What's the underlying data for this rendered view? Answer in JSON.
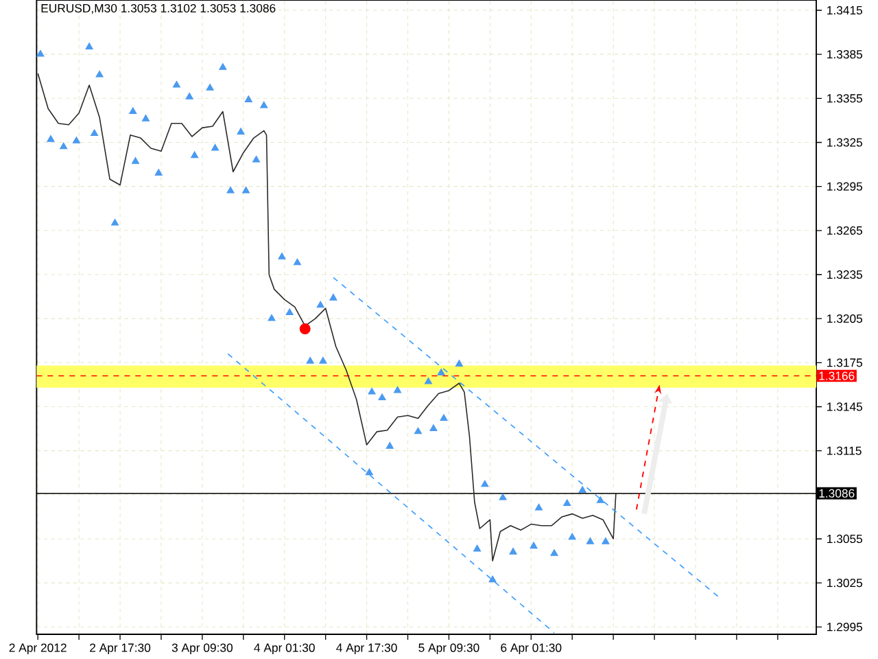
{
  "chart_data": {
    "type": "line",
    "title": "EURUSD,M30  1.3053 1.3102 1.3053 1.3086",
    "xlim": [
      "2012-04-02T01:15",
      "2012-04-08T09:00"
    ],
    "ylim": [
      1.299,
      1.3422
    ],
    "xticks": [
      {
        "value": "2012-04-02T01:30",
        "label": "2 Apr 2012"
      },
      {
        "value": "2012-04-02T09:30",
        "label": null
      },
      {
        "value": "2012-04-02T17:30",
        "label": "2 Apr 17:30"
      },
      {
        "value": "2012-04-03T01:30",
        "label": null
      },
      {
        "value": "2012-04-03T09:30",
        "label": "3 Apr 09:30"
      },
      {
        "value": "2012-04-03T17:30",
        "label": null
      },
      {
        "value": "2012-04-04T01:30",
        "label": "4 Apr 01:30"
      },
      {
        "value": "2012-04-04T09:30",
        "label": null
      },
      {
        "value": "2012-04-04T17:30",
        "label": "4 Apr 17:30"
      },
      {
        "value": "2012-04-05T01:30",
        "label": null
      },
      {
        "value": "2012-04-05T09:30",
        "label": "5 Apr 09:30"
      },
      {
        "value": "2012-04-05T17:30",
        "label": null
      },
      {
        "value": "2012-04-06T01:30",
        "label": "6 Apr 01:30"
      },
      {
        "value": "2012-04-06T09:30",
        "label": null
      },
      {
        "value": "2012-04-06T17:30",
        "label": null
      },
      {
        "value": "2012-04-07T01:30",
        "label": null
      },
      {
        "value": "2012-04-07T09:30",
        "label": null
      },
      {
        "value": "2012-04-07T17:30",
        "label": null
      },
      {
        "value": "2012-04-08T01:30",
        "label": null
      }
    ],
    "yticks": [
      1.2995,
      1.3025,
      1.3055,
      {
        "value": 1.3085,
        "label": null
      },
      1.3115,
      1.3145,
      1.3175,
      1.3205,
      1.3235,
      1.3265,
      1.3295,
      1.3325,
      1.3355,
      1.3385,
      1.3415
    ],
    "grid": true,
    "series": [
      {
        "color": "#2a2a2a",
        "line_style": "solid",
        "x": [
          "2012-04-02T01:30",
          "2012-04-02T03:30",
          "2012-04-02T05:30",
          "2012-04-02T07:30",
          "2012-04-02T09:30",
          "2012-04-02T11:30",
          "2012-04-02T13:30",
          "2012-04-02T15:30",
          "2012-04-02T17:30",
          "2012-04-02T19:30",
          "2012-04-02T21:30",
          "2012-04-02T23:30",
          "2012-04-03T01:30",
          "2012-04-03T03:30",
          "2012-04-03T05:30",
          "2012-04-03T07:30",
          "2012-04-03T09:30",
          "2012-04-03T11:30",
          "2012-04-03T13:30",
          "2012-04-03T15:30",
          "2012-04-03T17:30",
          "2012-04-03T19:30",
          "2012-04-03T21:30",
          "2012-04-03T22:00",
          "2012-04-03T22:30",
          "2012-04-03T23:30",
          "2012-04-04T01:30",
          "2012-04-04T03:30",
          "2012-04-04T05:30",
          "2012-04-04T07:30",
          "2012-04-04T09:30",
          "2012-04-04T11:30",
          "2012-04-04T13:30",
          "2012-04-04T15:30",
          "2012-04-04T17:30",
          "2012-04-04T19:30",
          "2012-04-04T21:30",
          "2012-04-04T23:30",
          "2012-04-05T01:30",
          "2012-04-05T03:30",
          "2012-04-05T05:30",
          "2012-04-05T07:30",
          "2012-04-05T09:30",
          "2012-04-05T11:30",
          "2012-04-05T12:30",
          "2012-04-05T13:30",
          "2012-04-05T14:30",
          "2012-04-05T15:30",
          "2012-04-05T17:30",
          "2012-04-05T18:00",
          "2012-04-05T19:30",
          "2012-04-05T21:30",
          "2012-04-05T23:30",
          "2012-04-06T01:30",
          "2012-04-06T03:30",
          "2012-04-06T05:30",
          "2012-04-06T07:30",
          "2012-04-06T09:30",
          "2012-04-06T11:30",
          "2012-04-06T13:30",
          "2012-04-06T15:30",
          "2012-04-06T17:30",
          "2012-04-06T18:00"
        ],
        "values": [
          1.3372,
          1.3348,
          1.3338,
          1.3337,
          1.3345,
          1.3364,
          1.3342,
          1.33,
          1.3296,
          1.333,
          1.3328,
          1.3321,
          1.3319,
          1.3338,
          1.3338,
          1.3329,
          1.3335,
          1.3336,
          1.3346,
          1.3305,
          1.3318,
          1.3328,
          1.3333,
          1.333,
          1.3235,
          1.3225,
          1.3218,
          1.3213,
          1.32,
          1.3205,
          1.3212,
          1.3186,
          1.317,
          1.315,
          1.3119,
          1.3128,
          1.3129,
          1.3138,
          1.3139,
          1.3137,
          1.3146,
          1.3154,
          1.3156,
          1.3161,
          1.3155,
          1.3125,
          1.308,
          1.3062,
          1.3068,
          1.304,
          1.306,
          1.3064,
          1.3061,
          1.3065,
          1.3064,
          1.3064,
          1.307,
          1.3072,
          1.3069,
          1.3071,
          1.3068,
          1.3055,
          1.3086
        ]
      },
      {
        "type": "line",
        "color": "#3399ff",
        "line_style": "dashed",
        "x": [
          "2012-04-04T11:00",
          "2012-04-07T14:30"
        ],
        "values": [
          1.3233,
          1.3014
        ]
      },
      {
        "type": "line",
        "color": "#3399ff",
        "line_style": "dashed",
        "x": [
          "2012-04-03T14:30",
          "2012-04-06T06:00"
        ],
        "values": [
          1.3181,
          1.2991
        ]
      },
      {
        "type": "scatter",
        "color": "#4a9af0",
        "marker": "triangle",
        "x": [
          "2012-04-02T02:00",
          "2012-04-02T11:30",
          "2012-04-02T13:30",
          "2012-04-02T20:00",
          "2012-04-02T22:30",
          "2012-04-03T04:30",
          "2012-04-03T07:00",
          "2012-04-03T11:00",
          "2012-04-03T13:30",
          "2012-04-03T17:00",
          "2012-04-03T18:30",
          "2012-04-03T21:30",
          "2012-04-04T01:00",
          "2012-04-04T04:00",
          "2012-04-04T08:30",
          "2012-04-04T11:00",
          "2012-04-04T18:30",
          "2012-04-04T20:30",
          "2012-04-04T23:30",
          "2012-04-05T05:30",
          "2012-04-05T08:00",
          "2012-04-05T11:30",
          "2012-04-05T16:30",
          "2012-04-05T20:00",
          "2012-04-06T03:00",
          "2012-04-06T08:30",
          "2012-04-06T11:30",
          "2012-04-06T15:00"
        ],
        "values": [
          1.3385,
          1.339,
          1.3371,
          1.3346,
          1.3341,
          1.3364,
          1.3356,
          1.3362,
          1.3376,
          1.3332,
          1.3354,
          1.335,
          1.3247,
          1.3243,
          1.3214,
          1.3219,
          1.3155,
          1.3151,
          1.3156,
          1.3162,
          1.3168,
          1.3174,
          1.3092,
          1.3083,
          1.3076,
          1.3079,
          1.3088,
          1.3081
        ]
      },
      {
        "type": "scatter",
        "color": "#4a9af0",
        "marker": "triangle",
        "x": [
          "2012-04-02T04:00",
          "2012-04-02T06:30",
          "2012-04-02T09:00",
          "2012-04-02T12:30",
          "2012-04-02T16:30",
          "2012-04-02T20:30",
          "2012-04-03T01:00",
          "2012-04-03T08:00",
          "2012-04-03T12:00",
          "2012-04-03T15:00",
          "2012-04-03T18:00",
          "2012-04-03T20:00",
          "2012-04-03T23:00",
          "2012-04-04T02:30",
          "2012-04-04T06:30",
          "2012-04-04T09:00",
          "2012-04-04T18:00",
          "2012-04-04T22:00",
          "2012-04-05T03:30",
          "2012-04-05T06:30",
          "2012-04-05T08:30",
          "2012-04-05T15:00",
          "2012-04-05T18:00",
          "2012-04-05T22:00",
          "2012-04-06T02:00",
          "2012-04-06T06:00",
          "2012-04-06T09:30",
          "2012-04-06T13:00",
          "2012-04-06T16:00"
        ],
        "values": [
          1.3327,
          1.3322,
          1.3326,
          1.3331,
          1.327,
          1.3312,
          1.3304,
          1.3316,
          1.3321,
          1.3292,
          1.3292,
          1.3313,
          1.3205,
          1.3209,
          1.3176,
          1.3176,
          1.31,
          1.3118,
          1.3128,
          1.313,
          1.3137,
          1.3048,
          1.3027,
          1.3046,
          1.305,
          1.3045,
          1.3056,
          1.3053,
          1.3053
        ]
      },
      {
        "type": "scatter",
        "color": "#ff0000",
        "marker": "circle",
        "x": [
          "2012-04-04T05:30"
        ],
        "values": [
          1.3198
        ]
      }
    ],
    "ref_lines": [
      {
        "axis": "y",
        "value": 1.3166,
        "label": "1.3166",
        "color": "#ff0000",
        "line_style": "dashed"
      },
      {
        "axis": "y",
        "value": 1.3086,
        "label": "1.3086",
        "color": "#000000",
        "line_style": "solid"
      }
    ],
    "bands": [
      {
        "axis": "y",
        "from": 1.3158,
        "to": 1.3173,
        "color": "#ffff66"
      }
    ]
  }
}
